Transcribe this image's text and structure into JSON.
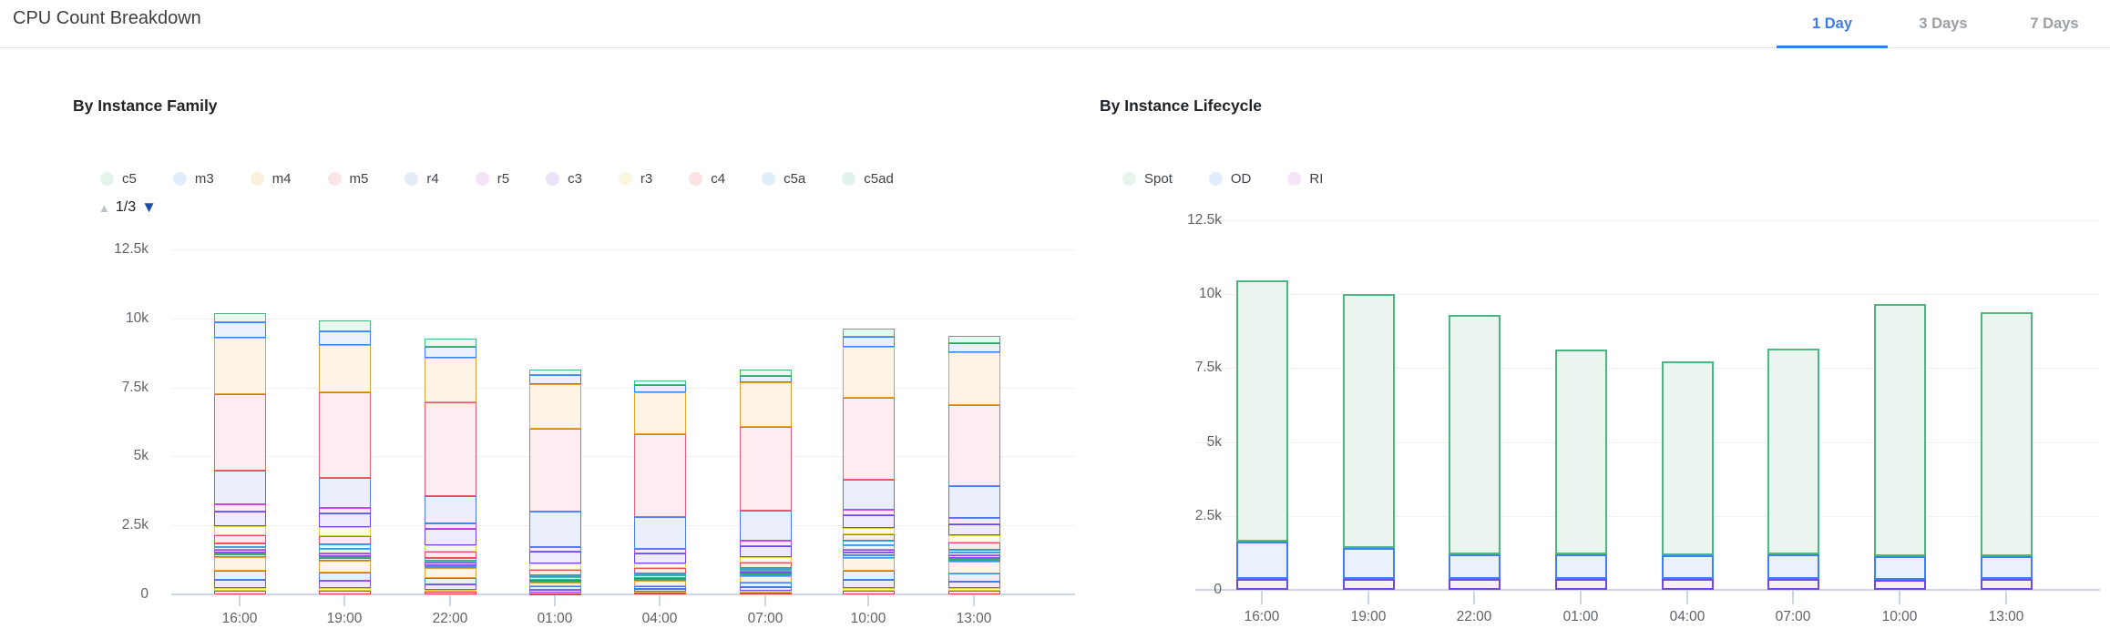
{
  "header": {
    "title": "CPU Count Breakdown",
    "accent_color": "#3b7cf0",
    "tabs": [
      {
        "label": "1 Day",
        "active": true
      },
      {
        "label": "3 Days",
        "active": false
      },
      {
        "label": "7 Days",
        "active": false
      }
    ]
  },
  "legend_pager": {
    "label": "1/3",
    "up_color": "#bfc3c7",
    "down_color": "#1d4fa8"
  },
  "chart_data": [
    {
      "type": "bar",
      "stacked": true,
      "title": "By Instance Family",
      "legend_position": "top",
      "legend_pages": "1/3",
      "grid": true,
      "categories": [
        "16:00",
        "19:00",
        "22:00",
        "01:00",
        "04:00",
        "07:00",
        "10:00",
        "13:00"
      ],
      "ylim": [
        0,
        12500
      ],
      "yticks": [
        {
          "v": 0,
          "label": "0"
        },
        {
          "v": 2500,
          "label": "2.5k"
        },
        {
          "v": 5000,
          "label": "5k"
        },
        {
          "v": 7500,
          "label": "7.5k"
        },
        {
          "v": 10000,
          "label": "10k"
        },
        {
          "v": 12500,
          "label": "12.5k"
        }
      ],
      "series_order": "top-down",
      "series": [
        {
          "name": "c5",
          "in_legend": true,
          "stroke": "#4cb782",
          "fill": "#eaf7f0",
          "dot": "#e6f4ec",
          "values": [
            330,
            380,
            290,
            220,
            180,
            240,
            280,
            270
          ]
        },
        {
          "name": "m3",
          "in_legend": true,
          "stroke": "#3d82f0",
          "fill": "#eaf1fd",
          "dot": "#e3ecfb",
          "values": [
            560,
            490,
            410,
            320,
            250,
            240,
            370,
            350
          ]
        },
        {
          "name": "m4",
          "in_legend": true,
          "stroke": "#e2a23b",
          "fill": "#fdf4e5",
          "dot": "#faf0dc",
          "values": [
            2030,
            1740,
            1620,
            1620,
            1540,
            1620,
            1870,
            1900
          ]
        },
        {
          "name": "m5",
          "in_legend": true,
          "stroke": "#e85d78",
          "fill": "#fdedf1",
          "dot": "#fbe4ea",
          "values": [
            2800,
            3090,
            3400,
            2990,
            2990,
            3020,
            2940,
            2950
          ]
        },
        {
          "name": "r4",
          "in_legend": true,
          "stroke": "#4e7ce8",
          "fill": "#ebeffb",
          "dot": "#e6ebf8",
          "values": [
            1220,
            1080,
            970,
            1290,
            1150,
            1110,
            1100,
            1140
          ]
        },
        {
          "name": "r5",
          "in_legend": true,
          "stroke": "#c44fe0",
          "fill": "#f9ebfc",
          "dot": "#f3e3f9",
          "values": [
            240,
            190,
            220,
            180,
            170,
            180,
            190,
            240
          ]
        },
        {
          "name": "c3",
          "in_legend": true,
          "stroke": "#6a4ae8",
          "fill": "#efebfc",
          "dot": "#eae4fa",
          "values": [
            540,
            510,
            570,
            430,
            350,
            410,
            470,
            380
          ]
        },
        {
          "name": "r3",
          "in_legend": true,
          "stroke": "#e3cb4a",
          "fill": "#fdfae8",
          "dot": "#faf7de",
          "values": [
            320,
            320,
            240,
            220,
            190,
            190,
            220,
            270
          ]
        },
        {
          "name": "c4",
          "in_legend": true,
          "stroke": "#e84f5c",
          "fill": "#fdebed",
          "dot": "#fbe2e5",
          "values": [
            320,
            320,
            240,
            190,
            180,
            180,
            250,
            270
          ]
        },
        {
          "name": "c5a",
          "in_legend": true,
          "stroke": "#3e9fd8",
          "fill": "#e9f4fb",
          "dot": "#dfeef9",
          "values": [
            100,
            150,
            80,
            80,
            80,
            80,
            160,
            90
          ]
        },
        {
          "name": "c5ad",
          "in_legend": true,
          "stroke": "#46b8a0",
          "fill": "#e9f7f4",
          "dot": "#e1f3ec",
          "values": [
            100,
            150,
            80,
            80,
            80,
            80,
            160,
            90
          ]
        },
        {
          "name": "unlabeled-1",
          "in_legend": false,
          "stroke": "#8a4ae8",
          "fill": "#f0e9fc",
          "dot": "#f0e9fc",
          "values": [
            114,
            105,
            81,
            38,
            42,
            57,
            113,
            100
          ]
        },
        {
          "name": "unlabeled-2",
          "in_legend": false,
          "stroke": "#3da36c",
          "fill": "#e8f5ee",
          "dot": "#e8f5ee",
          "values": [
            82,
            75,
            58,
            27,
            30,
            41,
            81,
            72
          ]
        },
        {
          "name": "unlabeled-3",
          "in_legend": false,
          "stroke": "#4292e8",
          "fill": "#e9f2fc",
          "dot": "#e9f2fc",
          "values": [
            98,
            90,
            69,
            32,
            36,
            49,
            97,
            86
          ]
        },
        {
          "name": "unlabeled-4",
          "in_legend": false,
          "stroke": "#e2a23b",
          "fill": "#fdf4e5",
          "dot": "#fdf4e5",
          "values": [
            489,
            450,
            345,
            162,
            180,
            243,
            486,
            429
          ]
        },
        {
          "name": "unlabeled-5",
          "in_legend": false,
          "stroke": "#4e7ce8",
          "fill": "#ebeffb",
          "dot": "#ebeffb",
          "values": [
            326,
            300,
            230,
            108,
            120,
            162,
            324,
            286
          ]
        },
        {
          "name": "unlabeled-6",
          "in_legend": false,
          "stroke": "#7c52e8",
          "fill": "#f0e9fc",
          "dot": "#f0e9fc",
          "values": [
            277,
            255,
            196,
            92,
            102,
            138,
            275,
            243
          ]
        },
        {
          "name": "unlabeled-7",
          "in_legend": false,
          "stroke": "#e3cb4a",
          "fill": "#fdfae8",
          "dot": "#fdfae8",
          "values": [
            98,
            90,
            69,
            32,
            36,
            49,
            97,
            86
          ]
        },
        {
          "name": "unlabeled-8",
          "in_legend": false,
          "stroke": "#e8404c",
          "fill": "#fdebed",
          "dot": "#fdebed",
          "values": [
            147,
            135,
            104,
            49,
            54,
            73,
            146,
            129
          ]
        }
      ]
    },
    {
      "type": "bar",
      "stacked": true,
      "title": "By Instance Lifecycle",
      "legend_position": "top",
      "grid": true,
      "categories": [
        "16:00",
        "19:00",
        "22:00",
        "01:00",
        "04:00",
        "07:00",
        "10:00",
        "13:00"
      ],
      "ylim": [
        0,
        12500
      ],
      "yticks": [
        {
          "v": 0,
          "label": "0"
        },
        {
          "v": 2500,
          "label": "2.5k"
        },
        {
          "v": 5000,
          "label": "5k"
        },
        {
          "v": 7500,
          "label": "7.5k"
        },
        {
          "v": 10000,
          "label": "10k"
        },
        {
          "v": 12500,
          "label": "12.5k"
        }
      ],
      "series_order": "top-down",
      "series": [
        {
          "name": "Spot",
          "in_legend": true,
          "stroke": "#4cb782",
          "fill": "#eaf5ef",
          "dot": "#e6f4ec",
          "values": [
            8840,
            8600,
            8100,
            6920,
            6560,
            6970,
            8510,
            8250
          ]
        },
        {
          "name": "OD",
          "in_legend": true,
          "stroke": "#3d82f0",
          "fill": "#eaf1fd",
          "dot": "#e3ecfb",
          "values": [
            1260,
            1030,
            825,
            820,
            805,
            820,
            800,
            795
          ]
        },
        {
          "name": "RI",
          "in_legend": true,
          "stroke": "#7048e8",
          "fill": "#f8edfb",
          "dot": "#f6e4f9",
          "values": [
            380,
            380,
            375,
            380,
            375,
            380,
            350,
            355
          ]
        }
      ]
    }
  ]
}
